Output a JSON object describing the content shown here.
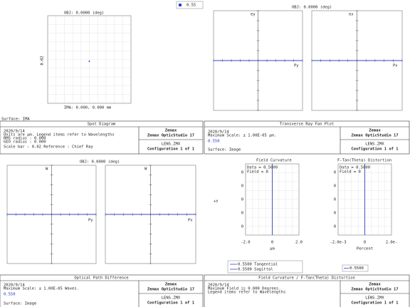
{
  "wavelength_legend": "0.55",
  "spot": {
    "obj": "OBJ: 0.0000 (deg)",
    "scale": "0.02",
    "ima": "IMA: 0.000, 0.000 mm",
    "surface": "Surface: IMA",
    "title": "Spot Diagram",
    "info": [
      "2020/9/14",
      "Units are µm.  Legend items refer to Wavelengths",
      "RMS radius :    0.000",
      "GEO radius :    0.000",
      "Scale bar : 0.02      Reference  : Chief Ray"
    ],
    "company": "Zemax",
    "product": "Zemax OpticStudio 17",
    "file": "LENS.ZMX",
    "config": "Configuration 1 of 1"
  },
  "ray_fan": {
    "obj": "OBJ: 0.0000 (deg)",
    "left_y": "ey",
    "left_x": "Py",
    "right_y": "ex",
    "right_x": "Px",
    "title": "Transverse Ray Fan Plot",
    "info": [
      "2020/9/14",
      "Maximum Scale: ± 1.00E-05 µm."
    ],
    "wavelength": "0.550",
    "surface": "Surface: Image",
    "company": "Zemax",
    "product": "Zemax OpticStudio 17",
    "file": "LENS.ZMX",
    "config": "Configuration 1 of 1"
  },
  "opd": {
    "obj": "OBJ: 0.0000 (deg)",
    "left_y": "W",
    "left_x": "Py",
    "right_y": "W",
    "right_x": "Px",
    "title": "Optical Path Difference",
    "info": [
      "2020/9/14",
      "Maximum Scale: ± 1.00E-05 Waves."
    ],
    "wavelength": "0.550",
    "surface": "Surface: Image",
    "company": "Zemax",
    "product": "Zemax OpticStudio 17",
    "file": "LENS.ZMX",
    "config": "Configuration 1 of 1"
  },
  "field": {
    "curv_title": "Field Curvature",
    "dist_title": "F-Tan(Theta) Distortion",
    "curv_note": [
      "Data = 0.5000",
      "Field = 0"
    ],
    "dist_note": [
      "Data = 0.5000",
      "Field = 0"
    ],
    "y_axis": "+Y",
    "curv_yticks": [
      "0",
      "0",
      "0",
      "0",
      "0"
    ],
    "dist_yticks": [
      "0",
      "0",
      "0",
      "0",
      "0"
    ],
    "curv_xticks": [
      "-2.0",
      "0",
      "2.0"
    ],
    "curv_xlabel": "µm",
    "dist_xticks": [
      "-2.0e-3",
      "0",
      "2.0e-"
    ],
    "dist_xlabel": "Percent",
    "legend_curv": [
      "0.5500 Tangential",
      "0.5500 Sagittal"
    ],
    "legend_dist": "0.5500",
    "title": "Field Curvature / F-Tan(Theta) Distortion",
    "info": [
      "2020/9/14",
      "Maximum Field is 0.000 Degrees.",
      "Legend items refer to Wavelengths"
    ],
    "company": "Zemax",
    "product": "Zemax OpticStudio 17",
    "file": "LENS.ZMX",
    "config": "Configuration 1 of 1"
  }
}
